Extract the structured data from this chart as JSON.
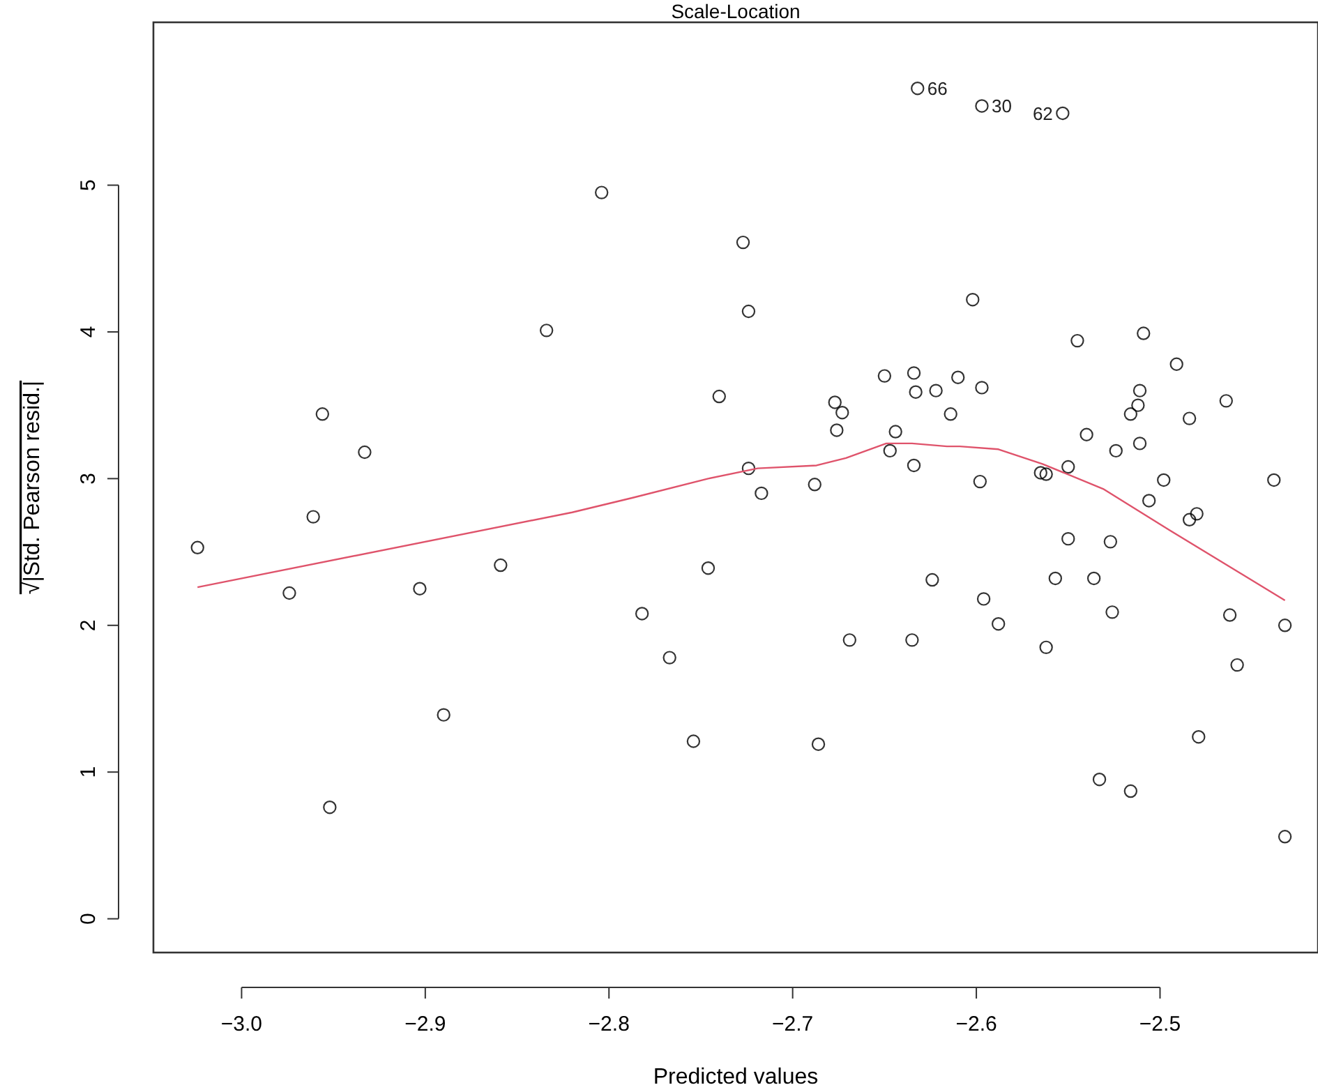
{
  "chart_data": {
    "type": "scatter",
    "title": "Scale-Location",
    "xlabel": "Predicted values",
    "ylabel": "√|Std. Pearson resid.|",
    "xlim": [
      -3.048,
      -2.414
    ],
    "ylim": [
      -0.23,
      6.11
    ],
    "xticks": [
      {
        "value": -3.0,
        "label": "−3.0"
      },
      {
        "value": -2.9,
        "label": "−2.9"
      },
      {
        "value": -2.8,
        "label": "−2.8"
      },
      {
        "value": -2.7,
        "label": "−2.7"
      },
      {
        "value": -2.6,
        "label": "−2.6"
      },
      {
        "value": -2.5,
        "label": "−2.5"
      }
    ],
    "yticks": [
      0,
      1,
      2,
      3,
      4,
      5
    ],
    "series": [
      {
        "marker": "circle",
        "color": "#000000",
        "x": [
          -3.024,
          -2.834,
          -2.956,
          -2.933,
          -2.961,
          -2.974,
          -2.903,
          -2.859,
          -2.89,
          -2.952,
          -2.804,
          -2.727,
          -2.724,
          -2.74,
          -2.677,
          -2.673,
          -2.676,
          -2.65,
          -2.634,
          -2.633,
          -2.622,
          -2.644,
          -2.647,
          -2.634,
          -2.724,
          -2.717,
          -2.688,
          -2.746,
          -2.782,
          -2.767,
          -2.669,
          -2.635,
          -2.624,
          -2.754,
          -2.686,
          -2.632,
          -2.597,
          -2.553,
          -2.602,
          -2.545,
          -2.509,
          -2.491,
          -2.61,
          -2.597,
          -2.614,
          -2.511,
          -2.512,
          -2.516,
          -2.464,
          -2.484,
          -2.54,
          -2.524,
          -2.511,
          -2.55,
          -2.565,
          -2.562,
          -2.598,
          -2.498,
          -2.438,
          -2.506,
          -2.48,
          -2.484,
          -2.55,
          -2.527,
          -2.557,
          -2.536,
          -2.596,
          -2.588,
          -2.526,
          -2.462,
          -2.432,
          -2.562,
          -2.458,
          -2.479,
          -2.533,
          -2.516,
          -2.432
        ],
        "values": [
          2.53,
          4.01,
          3.44,
          3.18,
          2.74,
          2.22,
          2.25,
          2.41,
          1.39,
          0.76,
          4.95,
          4.61,
          4.14,
          3.56,
          3.52,
          3.45,
          3.33,
          3.7,
          3.72,
          3.59,
          3.6,
          3.32,
          3.19,
          3.09,
          3.07,
          2.9,
          2.96,
          2.39,
          2.08,
          1.78,
          1.9,
          1.9,
          2.31,
          1.21,
          1.19,
          5.66,
          5.54,
          5.49,
          4.22,
          3.94,
          3.99,
          3.78,
          3.69,
          3.62,
          3.44,
          3.6,
          3.5,
          3.44,
          3.53,
          3.41,
          3.3,
          3.19,
          3.24,
          3.08,
          3.04,
          3.03,
          2.98,
          2.99,
          2.99,
          2.85,
          2.76,
          2.72,
          2.59,
          2.57,
          2.32,
          2.32,
          2.18,
          2.01,
          2.09,
          2.07,
          2.0,
          1.85,
          1.73,
          1.24,
          0.95,
          0.87,
          0.56
        ]
      },
      {
        "type": "line",
        "color": "#df536b",
        "x": [
          -3.024,
          -2.82,
          -2.787,
          -2.746,
          -2.719,
          -2.687,
          -2.671,
          -2.649,
          -2.635,
          -2.616,
          -2.609,
          -2.588,
          -2.564,
          -2.531,
          -2.495,
          -2.432
        ],
        "values": [
          2.26,
          2.77,
          2.87,
          3.0,
          3.07,
          3.09,
          3.14,
          3.24,
          3.24,
          3.22,
          3.22,
          3.2,
          3.1,
          2.93,
          2.65,
          2.17
        ]
      }
    ],
    "annotations": [
      {
        "text": "66",
        "x": -2.632,
        "y": 5.66
      },
      {
        "text": "30",
        "x": -2.597,
        "y": 5.54
      },
      {
        "text": "62",
        "x": -2.553,
        "y": 5.49
      }
    ]
  }
}
